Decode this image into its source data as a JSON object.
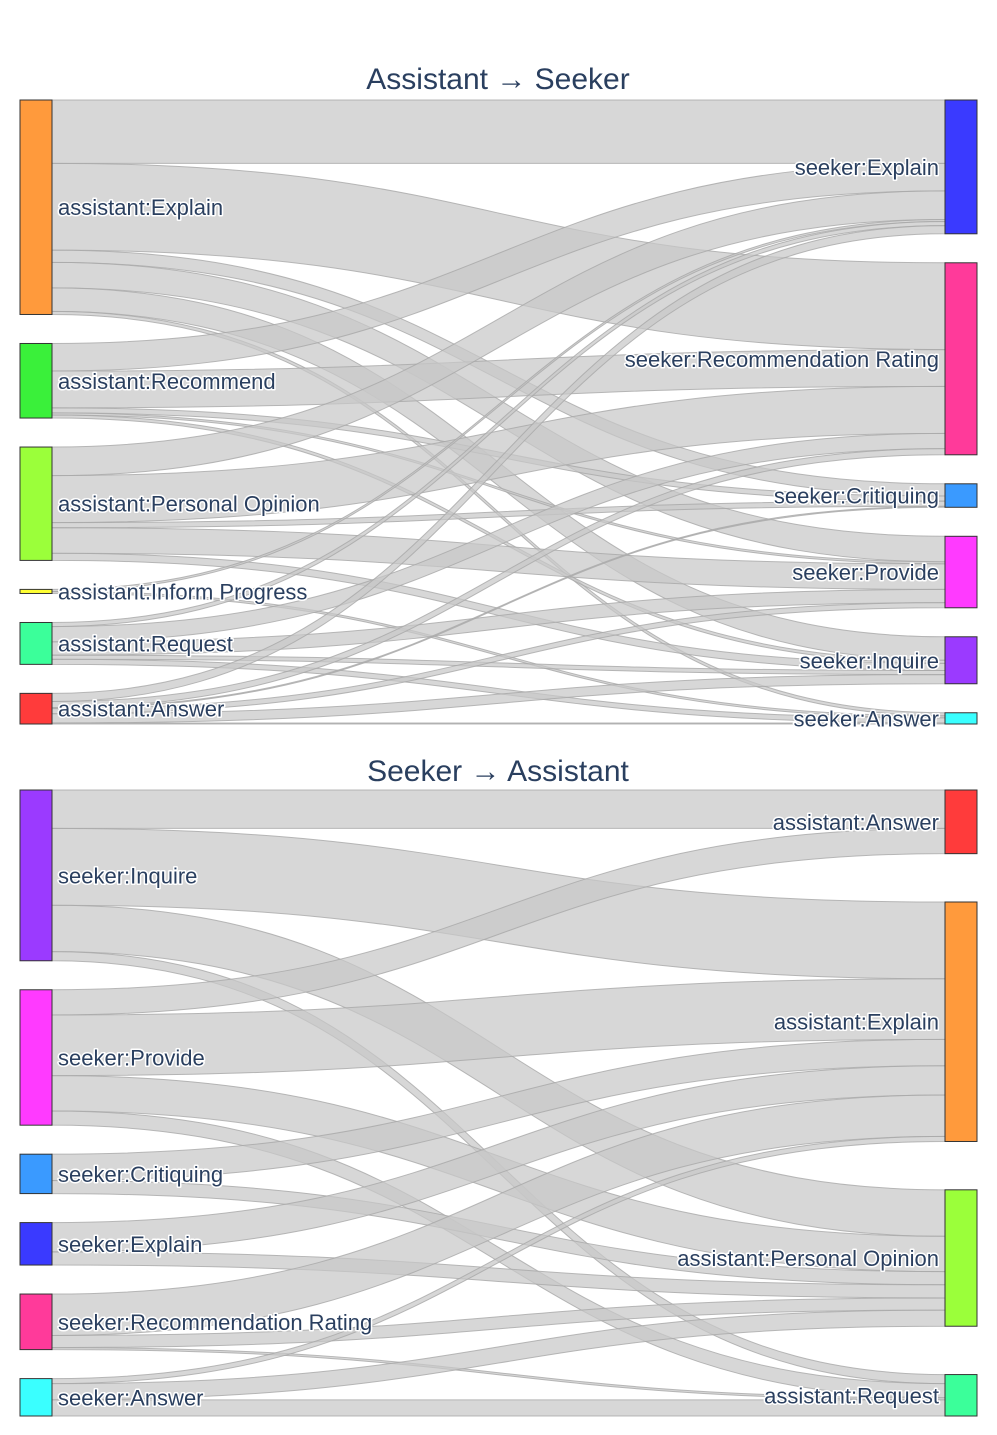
{
  "chart_data": [
    {
      "type": "sankey",
      "title": "Assistant → Seeker",
      "sources": [
        {
          "id": "aExplain",
          "label": "assistant:Explain",
          "color": "#FF9A3C"
        },
        {
          "id": "aRecommend",
          "label": "assistant:Recommend",
          "color": "#3AF03A"
        },
        {
          "id": "aOpinion",
          "label": "assistant:Personal Opinion",
          "color": "#9BFF3A"
        },
        {
          "id": "aInform",
          "label": "assistant:Inform Progress",
          "color": "#FFFF33"
        },
        {
          "id": "aRequest",
          "label": "assistant:Request",
          "color": "#3BFF9A"
        },
        {
          "id": "aAnswer",
          "label": "assistant:Answer",
          "color": "#FF3B3B"
        }
      ],
      "targets": [
        {
          "id": "sExplain",
          "label": "seeker:Explain",
          "color": "#3A3AFF"
        },
        {
          "id": "sRating",
          "label": "seeker:Recommendation Rating",
          "color": "#FF3A9A"
        },
        {
          "id": "sCritiquing",
          "label": "seeker:Critiquing",
          "color": "#3A9AFF"
        },
        {
          "id": "sProvide",
          "label": "seeker:Provide",
          "color": "#FF3AFF"
        },
        {
          "id": "sInquire",
          "label": "seeker:Inquire",
          "color": "#9B3AFF"
        },
        {
          "id": "sAnswer",
          "label": "seeker:Answer",
          "color": "#3AFFFF"
        }
      ],
      "links": [
        {
          "source": "aExplain",
          "target": "sExplain",
          "value": 62
        },
        {
          "source": "aExplain",
          "target": "sRating",
          "value": 85
        },
        {
          "source": "aExplain",
          "target": "sCritiquing",
          "value": 12
        },
        {
          "source": "aExplain",
          "target": "sProvide",
          "value": 25
        },
        {
          "source": "aExplain",
          "target": "sInquire",
          "value": 23
        },
        {
          "source": "aExplain",
          "target": "sAnswer",
          "value": 3
        },
        {
          "source": "aRecommend",
          "target": "sExplain",
          "value": 27
        },
        {
          "source": "aRecommend",
          "target": "sRating",
          "value": 36
        },
        {
          "source": "aRecommend",
          "target": "sCritiquing",
          "value": 5
        },
        {
          "source": "aRecommend",
          "target": "sProvide",
          "value": 2
        },
        {
          "source": "aRecommend",
          "target": "sInquire",
          "value": 3
        },
        {
          "source": "aOpinion",
          "target": "sExplain",
          "value": 28
        },
        {
          "source": "aOpinion",
          "target": "sRating",
          "value": 46
        },
        {
          "source": "aOpinion",
          "target": "sCritiquing",
          "value": 5
        },
        {
          "source": "aOpinion",
          "target": "sProvide",
          "value": 25
        },
        {
          "source": "aOpinion",
          "target": "sInquire",
          "value": 7
        },
        {
          "source": "aInform",
          "target": "sExplain",
          "value": 2
        },
        {
          "source": "aInform",
          "target": "sAnswer",
          "value": 2
        },
        {
          "source": "aRequest",
          "target": "sExplain",
          "value": 4
        },
        {
          "source": "aRequest",
          "target": "sRating",
          "value": 15
        },
        {
          "source": "aRequest",
          "target": "sProvide",
          "value": 13
        },
        {
          "source": "aRequest",
          "target": "sInquire",
          "value": 4
        },
        {
          "source": "aRequest",
          "target": "sAnswer",
          "value": 5
        },
        {
          "source": "aAnswer",
          "target": "sExplain",
          "value": 8
        },
        {
          "source": "aAnswer",
          "target": "sRating",
          "value": 6
        },
        {
          "source": "aAnswer",
          "target": "sCritiquing",
          "value": 1
        },
        {
          "source": "aAnswer",
          "target": "sProvide",
          "value": 5
        },
        {
          "source": "aAnswer",
          "target": "sInquire",
          "value": 9
        },
        {
          "source": "aAnswer",
          "target": "sAnswer",
          "value": 1
        }
      ]
    },
    {
      "type": "sankey",
      "title": "Seeker → Assistant",
      "sources": [
        {
          "id": "sInquire",
          "label": "seeker:Inquire",
          "color": "#9B3AFF"
        },
        {
          "id": "sProvide",
          "label": "seeker:Provide",
          "color": "#FF3AFF"
        },
        {
          "id": "sCritiquing",
          "label": "seeker:Critiquing",
          "color": "#3A9AFF"
        },
        {
          "id": "sExplain",
          "label": "seeker:Explain",
          "color": "#3A3AFF"
        },
        {
          "id": "sRating",
          "label": "seeker:Recommendation Rating",
          "color": "#FF3A9A"
        },
        {
          "id": "sAnswer",
          "label": "seeker:Answer",
          "color": "#3AFFFF"
        }
      ],
      "targets": [
        {
          "id": "aAnswer",
          "label": "assistant:Answer",
          "color": "#FF3B3B"
        },
        {
          "id": "aExplain",
          "label": "assistant:Explain",
          "color": "#FF9A3C"
        },
        {
          "id": "aOpinion",
          "label": "assistant:Personal Opinion",
          "color": "#9BFF3A"
        },
        {
          "id": "aRequest",
          "label": "assistant:Request",
          "color": "#3BFF9A"
        }
      ],
      "links": [
        {
          "source": "sInquire",
          "target": "aAnswer",
          "value": 38
        },
        {
          "source": "sInquire",
          "target": "aExplain",
          "value": 76
        },
        {
          "source": "sInquire",
          "target": "aOpinion",
          "value": 46
        },
        {
          "source": "sInquire",
          "target": "aRequest",
          "value": 9
        },
        {
          "source": "sProvide",
          "target": "aAnswer",
          "value": 25
        },
        {
          "source": "sProvide",
          "target": "aExplain",
          "value": 60
        },
        {
          "source": "sProvide",
          "target": "aOpinion",
          "value": 35
        },
        {
          "source": "sProvide",
          "target": "aRequest",
          "value": 14
        },
        {
          "source": "sCritiquing",
          "target": "aExplain",
          "value": 26
        },
        {
          "source": "sCritiquing",
          "target": "aOpinion",
          "value": 13
        },
        {
          "source": "sExplain",
          "target": "aExplain",
          "value": 29
        },
        {
          "source": "sExplain",
          "target": "aOpinion",
          "value": 13
        },
        {
          "source": "sRating",
          "target": "aExplain",
          "value": 41
        },
        {
          "source": "sRating",
          "target": "aOpinion",
          "value": 12
        },
        {
          "source": "sRating",
          "target": "aRequest",
          "value": 2
        },
        {
          "source": "sAnswer",
          "target": "aExplain",
          "value": 5
        },
        {
          "source": "sAnswer",
          "target": "aOpinion",
          "value": 16
        },
        {
          "source": "sAnswer",
          "target": "aRequest",
          "value": 16
        }
      ]
    }
  ]
}
